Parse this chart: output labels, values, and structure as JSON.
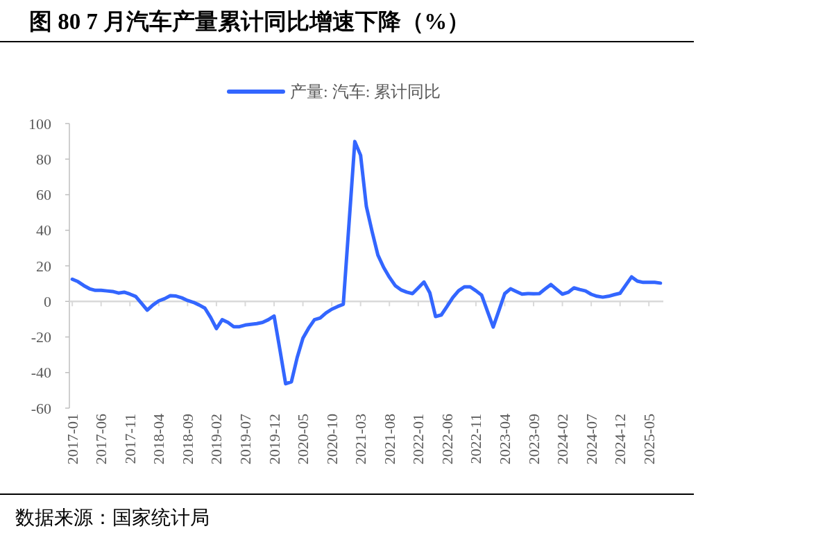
{
  "chart_data": {
    "type": "line",
    "title": "图 80 7 月汽车产量累计同比增速下降（%）",
    "annotations": [
      "数据来源：国家统计局"
    ],
    "categories": [
      "2017-01",
      null,
      null,
      null,
      null,
      "2017-06",
      null,
      null,
      null,
      null,
      "2017-11",
      null,
      null,
      null,
      null,
      "2018-04",
      null,
      null,
      null,
      null,
      "2018-09",
      null,
      null,
      null,
      null,
      "2019-02",
      null,
      null,
      null,
      null,
      "2019-07",
      null,
      null,
      null,
      null,
      "2019-12",
      null,
      null,
      null,
      null,
      "2020-05",
      null,
      null,
      null,
      null,
      "2020-10",
      null,
      null,
      null,
      null,
      "2021-03",
      null,
      null,
      null,
      null,
      "2021-08",
      null,
      null,
      null,
      null,
      "2022-01",
      null,
      null,
      null,
      null,
      "2022-06",
      null,
      null,
      null,
      null,
      "2022-11",
      null,
      null,
      null,
      null,
      "2023-04",
      null,
      null,
      null,
      null,
      "2023-09",
      null,
      null,
      null,
      null,
      "2024-02",
      null,
      null,
      null,
      null,
      "2024-07",
      null,
      null,
      null,
      null,
      "2024-12",
      null,
      null,
      null,
      null,
      "2025-05",
      null,
      null
    ],
    "series": [
      {
        "name": "产量: 汽车: 累计同比",
        "color": "#3366ff",
        "values": [
          12.5,
          11.1,
          8.9,
          7.1,
          6.2,
          6.2,
          5.9,
          5.6,
          4.7,
          5.2,
          4.1,
          2.8,
          -1.0,
          -4.9,
          -2.0,
          0.3,
          1.5,
          3.2,
          3.0,
          2.0,
          0.5,
          -0.5,
          -2.0,
          -3.8,
          -9.0,
          -15.3,
          -10.3,
          -11.8,
          -14.2,
          -14.2,
          -13.3,
          -12.9,
          -12.5,
          -11.8,
          -10.3,
          -8.2,
          -27,
          -46.3,
          -45.2,
          -31.6,
          -20.7,
          -15,
          -10.3,
          -9.3,
          -6.5,
          -4.4,
          -2.9,
          -1.6,
          44,
          89.9,
          82.2,
          53.4,
          39.2,
          26.1,
          19.1,
          13.6,
          8.9,
          6.5,
          5.2,
          4.4,
          7.6,
          10.9,
          4.9,
          -8.5,
          -7.6,
          -2.8,
          2.2,
          6.0,
          8.2,
          8.2,
          6.0,
          3.5,
          -5.5,
          -14.4,
          -5,
          4.4,
          7.1,
          5.6,
          4.1,
          4.4,
          4.3,
          4.4,
          7.0,
          9.5,
          6.8,
          4.1,
          5.1,
          7.6,
          6.7,
          5.9,
          4.0,
          2.9,
          2.4,
          2.9,
          3.8,
          4.6,
          9.2,
          13.8,
          11.4,
          10.7,
          10.7,
          10.7,
          10.3
        ]
      }
    ],
    "ylim": [
      -60,
      100
    ],
    "yticks": [
      -60,
      -40,
      -20,
      0,
      20,
      40,
      60,
      80,
      100
    ],
    "ref_lines": [
      {
        "axis": "y",
        "value": 0,
        "color": "#d9d9d9"
      }
    ],
    "grid": false,
    "legend": "top",
    "marker": "none",
    "line_style": "solid"
  }
}
